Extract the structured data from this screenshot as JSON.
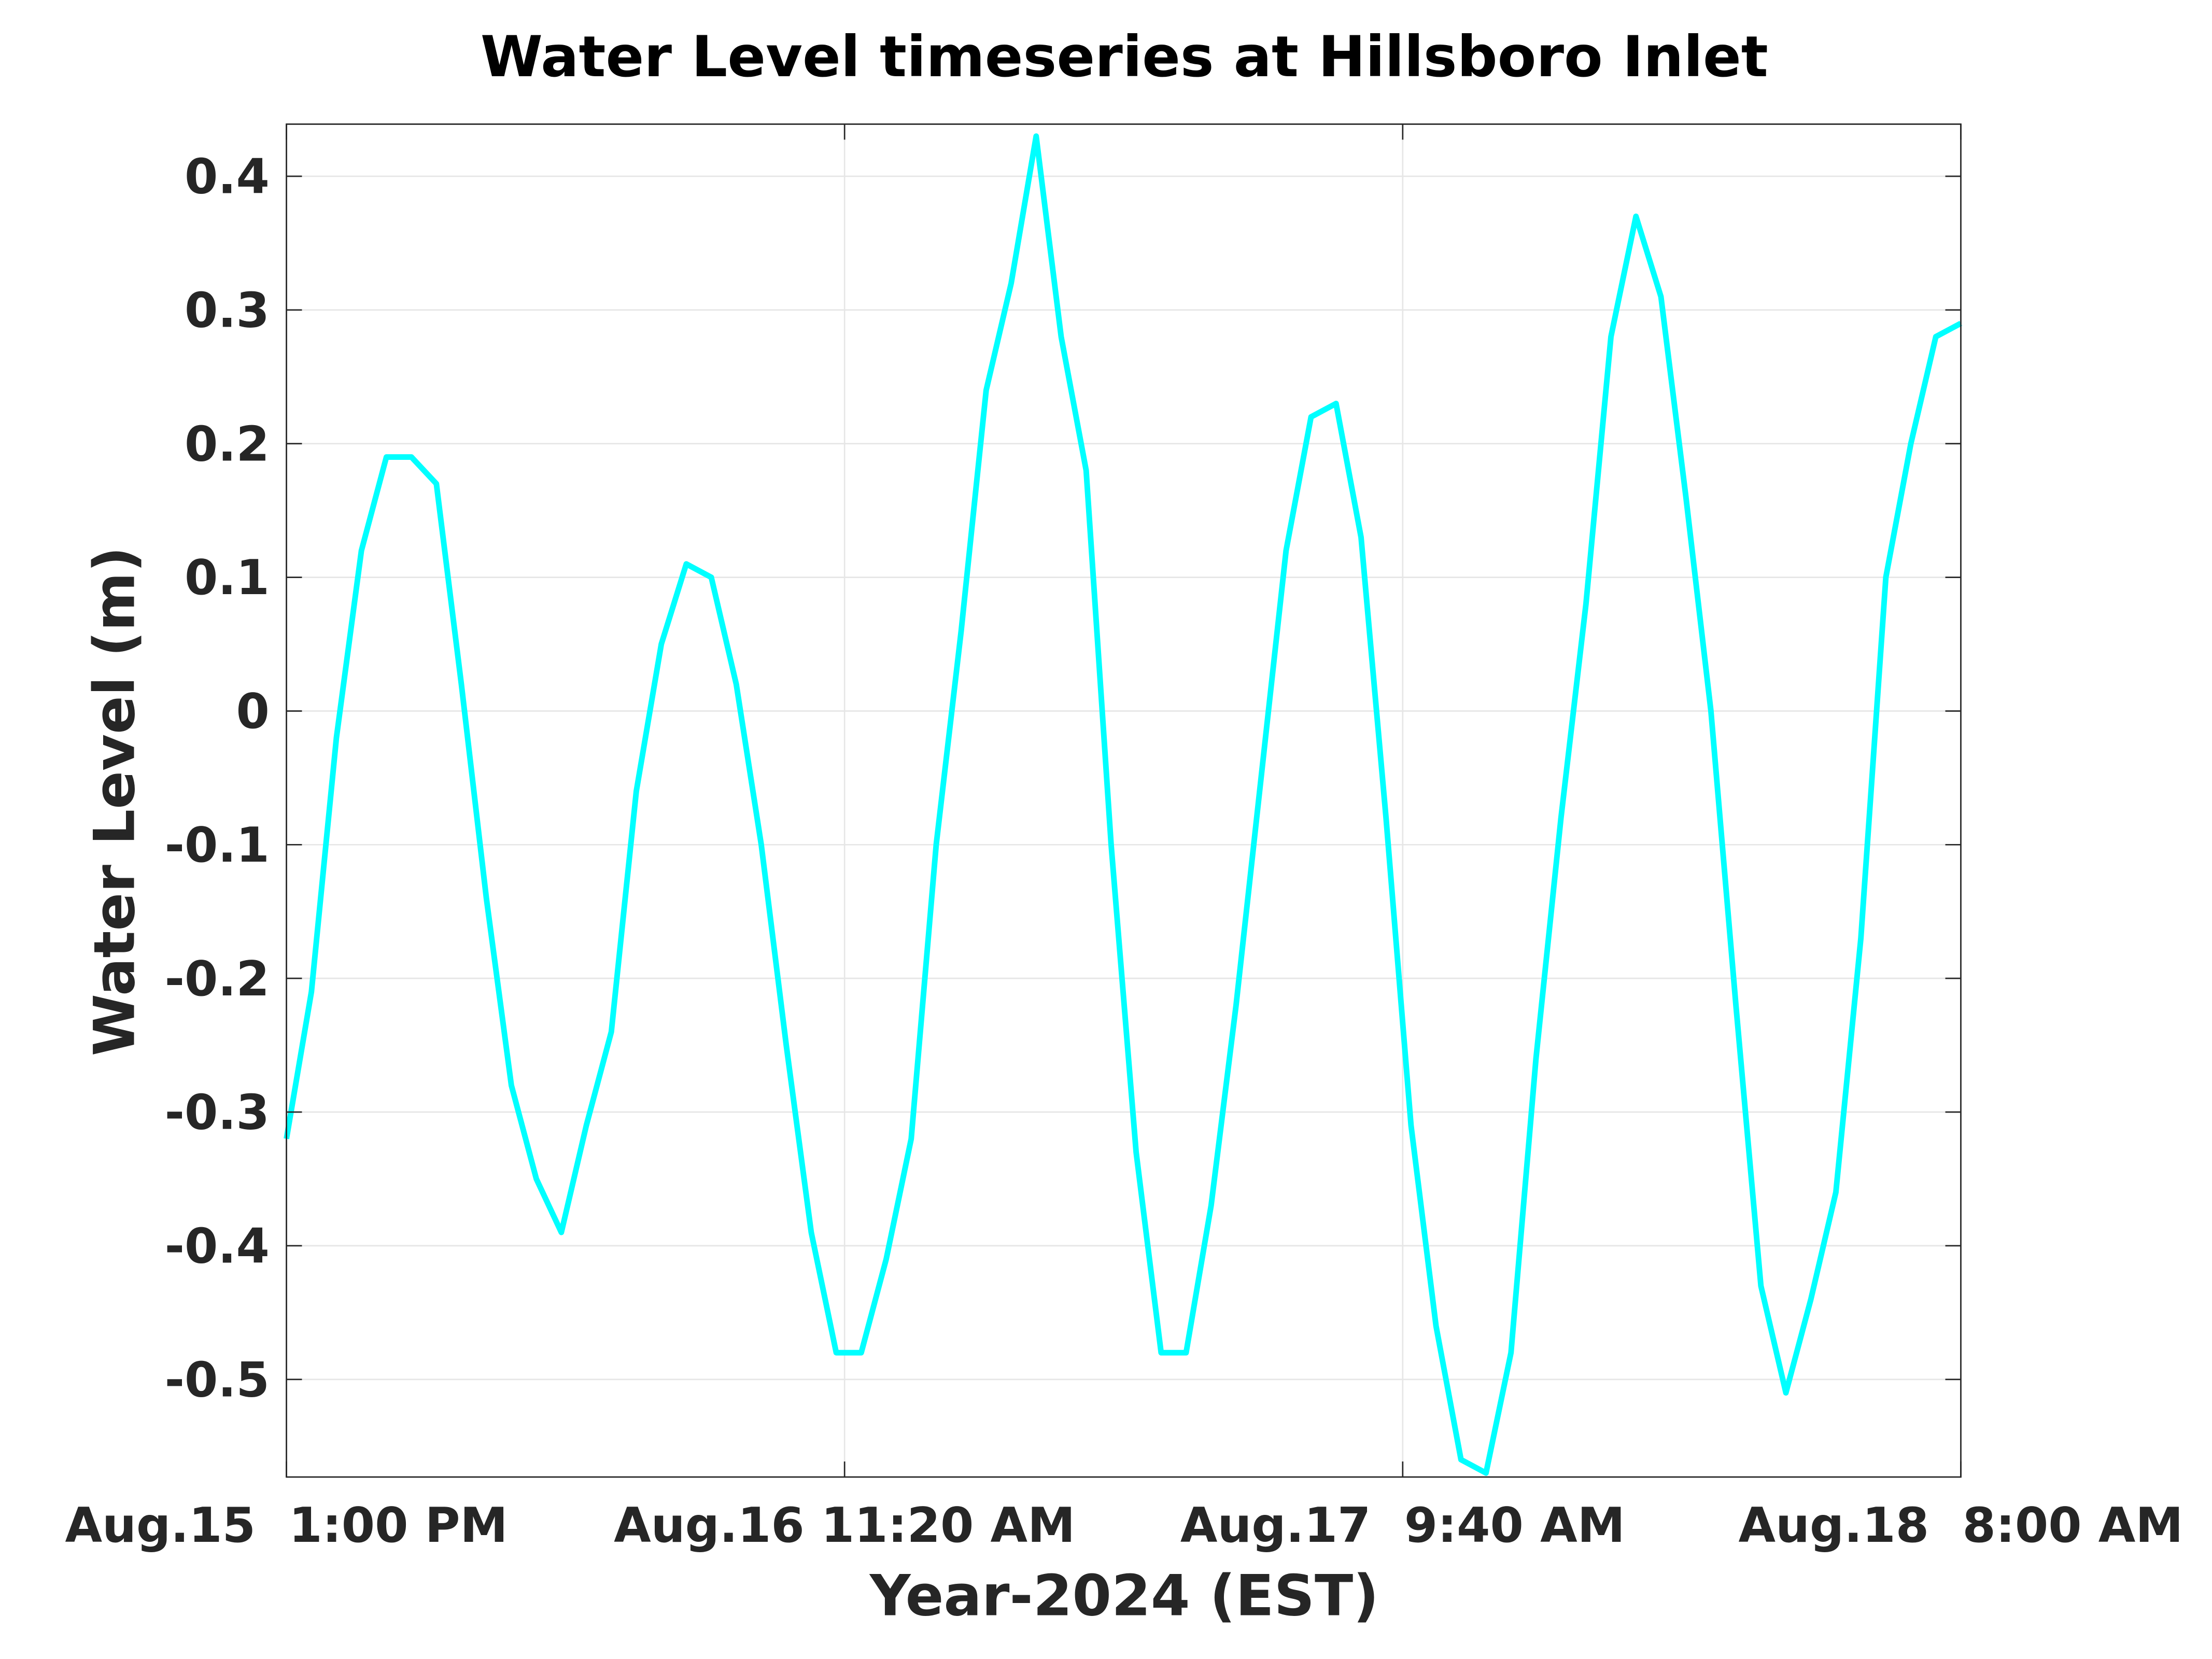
{
  "chart_data": {
    "type": "line",
    "title": "Water Level timeseries at Hillsboro Inlet",
    "x_label": "Year-2024 (EST)",
    "y_label": "Water Level (m)",
    "x": [
      "2024-08-15T13:00",
      "2024-08-15T14:00",
      "2024-08-15T15:00",
      "2024-08-15T16:00",
      "2024-08-15T17:00",
      "2024-08-15T18:00",
      "2024-08-15T19:00",
      "2024-08-15T20:00",
      "2024-08-15T21:00",
      "2024-08-15T22:00",
      "2024-08-15T23:00",
      "2024-08-16T00:00",
      "2024-08-16T01:00",
      "2024-08-16T02:00",
      "2024-08-16T03:00",
      "2024-08-16T04:00",
      "2024-08-16T05:00",
      "2024-08-16T06:00",
      "2024-08-16T07:00",
      "2024-08-16T08:00",
      "2024-08-16T09:00",
      "2024-08-16T10:00",
      "2024-08-16T11:00",
      "2024-08-16T12:00",
      "2024-08-16T13:00",
      "2024-08-16T14:00",
      "2024-08-16T15:00",
      "2024-08-16T16:00",
      "2024-08-16T17:00",
      "2024-08-16T18:00",
      "2024-08-16T19:00",
      "2024-08-16T20:00",
      "2024-08-16T21:00",
      "2024-08-16T22:00",
      "2024-08-16T23:00",
      "2024-08-17T00:00",
      "2024-08-17T01:00",
      "2024-08-17T02:00",
      "2024-08-17T03:00",
      "2024-08-17T04:00",
      "2024-08-17T05:00",
      "2024-08-17T06:00",
      "2024-08-17T07:00",
      "2024-08-17T08:00",
      "2024-08-17T09:00",
      "2024-08-17T10:00",
      "2024-08-17T11:00",
      "2024-08-17T12:00",
      "2024-08-17T13:00",
      "2024-08-17T14:00",
      "2024-08-17T15:00",
      "2024-08-17T16:00",
      "2024-08-17T17:00",
      "2024-08-17T18:00",
      "2024-08-17T19:00",
      "2024-08-17T20:00",
      "2024-08-17T21:00",
      "2024-08-17T22:00",
      "2024-08-17T23:00",
      "2024-08-18T00:00",
      "2024-08-18T01:00",
      "2024-08-18T02:00",
      "2024-08-18T03:00",
      "2024-08-18T04:00",
      "2024-08-18T05:00",
      "2024-08-18T06:00",
      "2024-08-18T07:00",
      "2024-08-18T08:00"
    ],
    "series": [
      {
        "name": "Water Level",
        "color": "#00ffff",
        "values": [
          -0.32,
          -0.21,
          -0.02,
          0.12,
          0.19,
          0.19,
          0.17,
          0.02,
          -0.14,
          -0.28,
          -0.35,
          -0.39,
          -0.31,
          -0.24,
          -0.06,
          0.05,
          0.11,
          0.1,
          0.02,
          -0.1,
          -0.25,
          -0.39,
          -0.48,
          -0.48,
          -0.41,
          -0.32,
          -0.1,
          0.06,
          0.24,
          0.32,
          0.43,
          0.28,
          0.18,
          -0.1,
          -0.33,
          -0.48,
          -0.48,
          -0.37,
          -0.22,
          -0.05,
          0.12,
          0.22,
          0.23,
          0.13,
          -0.08,
          -0.31,
          -0.46,
          -0.56,
          -0.57,
          -0.48,
          -0.26,
          -0.08,
          0.08,
          0.28,
          0.37,
          0.31,
          0.16,
          0.0,
          -0.22,
          -0.43,
          -0.51,
          -0.44,
          -0.36,
          -0.17,
          0.1,
          0.2,
          0.28,
          0.29
        ]
      }
    ],
    "xlim": [
      "2024-08-15T13:00",
      "2024-08-18T08:00"
    ],
    "xticks": [
      {
        "value": "2024-08-15T13:00",
        "label": "Aug.15  1:00 PM"
      },
      {
        "value": "2024-08-16T11:20",
        "label": "Aug.16 11:20 AM"
      },
      {
        "value": "2024-08-17T09:40",
        "label": "Aug.17  9:40 AM"
      },
      {
        "value": "2024-08-18T08:00",
        "label": "Aug.18  8:00 AM"
      }
    ],
    "ylim": [
      -0.573,
      0.439
    ],
    "yticks": [
      -0.5,
      -0.4,
      -0.3,
      -0.2,
      -0.1,
      0,
      0.1,
      0.2,
      0.3,
      0.4
    ],
    "grid": true
  }
}
